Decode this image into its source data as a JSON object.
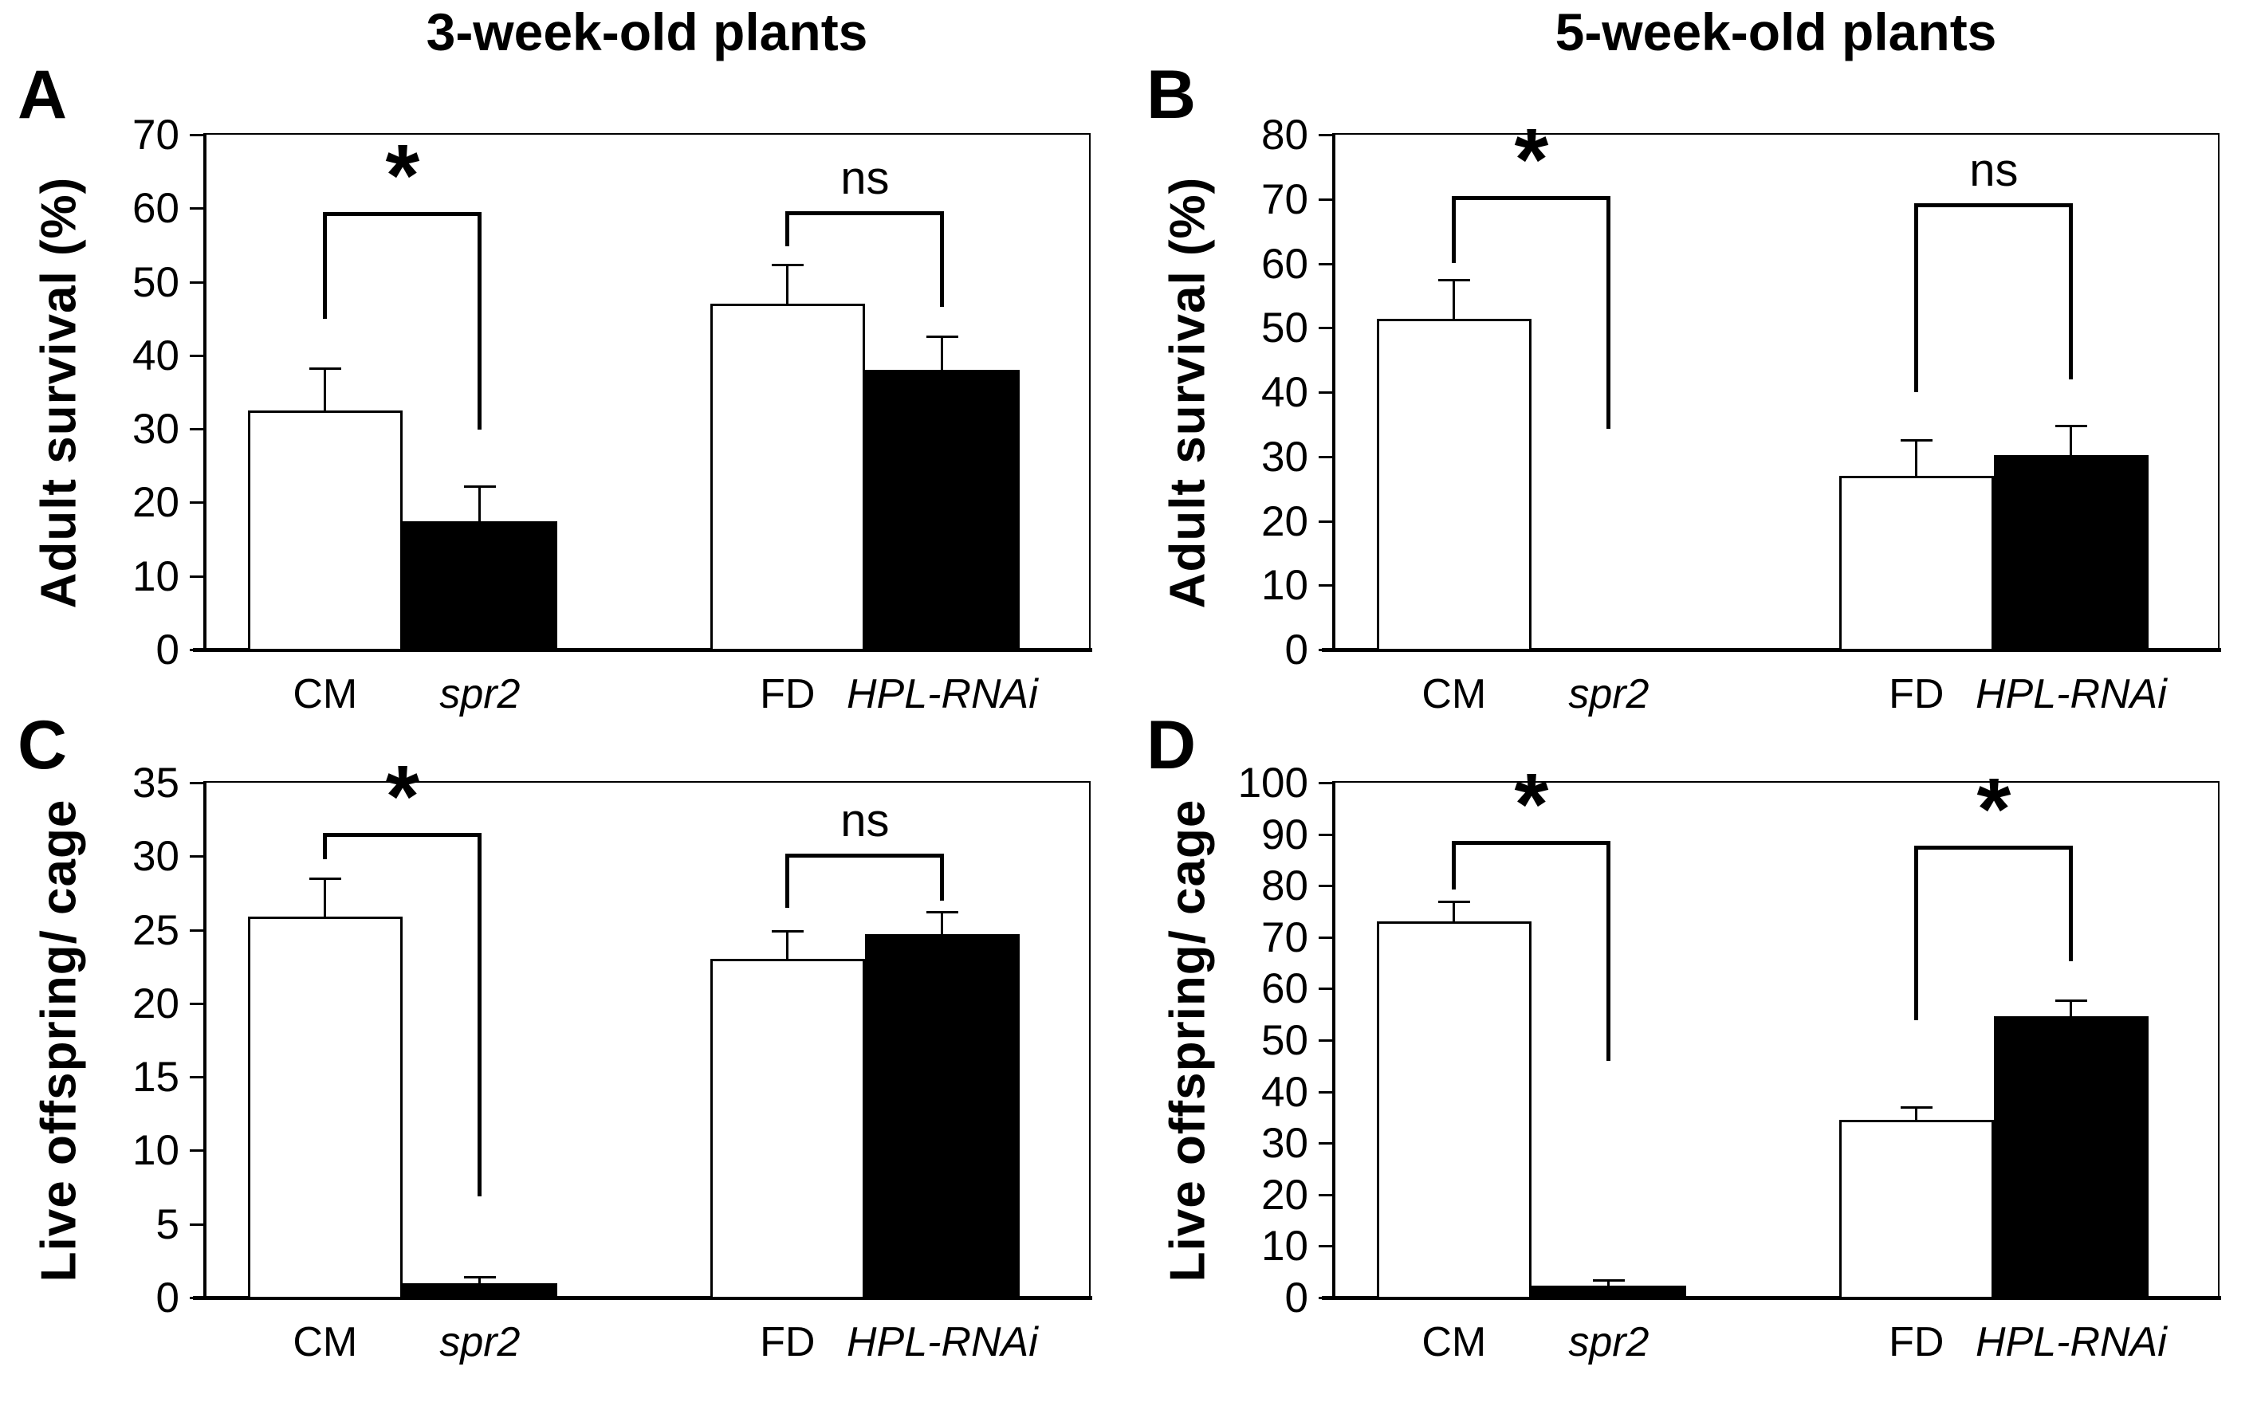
{
  "figure": {
    "column_titles": [
      "3-week-old plants",
      "5-week-old plants"
    ],
    "colors": {
      "background": "#ffffff",
      "line": "#000000",
      "bar_open_fill": "#ffffff",
      "bar_solid_fill": "#000000"
    }
  },
  "chart_data": [
    {
      "type": "bar",
      "panel_label": "A",
      "column_title": "3-week-old plants",
      "ylabel": "Adult survival (%)",
      "ylim": [
        0,
        70
      ],
      "ystep": 10,
      "grid": false,
      "legend": "none",
      "categories": [
        "CM",
        "spr2",
        "FD",
        "HPL-RNAi"
      ],
      "categories_italic": [
        false,
        true,
        false,
        true
      ],
      "bar_styles": [
        "white",
        "black",
        "white",
        "black"
      ],
      "values": [
        32.5,
        17.4,
        47.0,
        38.0
      ],
      "error_top": [
        38.3,
        22.2,
        52.3,
        42.6
      ],
      "significance": [
        {
          "label": "*",
          "from": 0,
          "to": 1,
          "top": 59.5,
          "arm_from": 45.0,
          "arm_to": 29.9
        },
        {
          "label": "ns",
          "from": 2,
          "to": 3,
          "top": 59.6,
          "arm_from": 54.8,
          "arm_to": 46.6
        }
      ]
    },
    {
      "type": "bar",
      "panel_label": "B",
      "column_title": "5-week-old plants",
      "ylabel": "Adult survival (%)",
      "ylim": [
        0,
        80
      ],
      "ystep": 10,
      "grid": false,
      "legend": "none",
      "categories": [
        "CM",
        "spr2",
        "FD",
        "HPL-RNAi"
      ],
      "categories_italic": [
        false,
        true,
        false,
        true
      ],
      "bar_styles": [
        "white",
        "black",
        "white",
        "black"
      ],
      "values": [
        51.4,
        0,
        27.0,
        30.2
      ],
      "error_top": [
        57.4,
        null,
        32.6,
        34.8
      ],
      "significance": [
        {
          "label": "*",
          "from": 0,
          "to": 1,
          "top": 70.5,
          "arm_from": 60.0,
          "arm_to": 34.3
        },
        {
          "label": "ns",
          "from": 2,
          "to": 3,
          "top": 69.4,
          "arm_from": 40.0,
          "arm_to": 42.0
        }
      ]
    },
    {
      "type": "bar",
      "panel_label": "C",
      "column_title": null,
      "ylabel": "Live offspring/ cage",
      "ylim": [
        0,
        35
      ],
      "ystep": 5,
      "grid": false,
      "legend": "none",
      "categories": [
        "CM",
        "spr2",
        "FD",
        "HPL-RNAi"
      ],
      "categories_italic": [
        false,
        true,
        false,
        true
      ],
      "bar_styles": [
        "white",
        "black",
        "white",
        "black"
      ],
      "values": [
        25.9,
        0.95,
        23.0,
        24.7
      ],
      "error_top": [
        28.5,
        1.4,
        24.9,
        26.2
      ],
      "significance": [
        {
          "label": "*",
          "from": 0,
          "to": 1,
          "top": 31.6,
          "arm_from": 29.8,
          "arm_to": 6.9
        },
        {
          "label": "ns",
          "from": 2,
          "to": 3,
          "top": 30.2,
          "arm_from": 26.5,
          "arm_to": 27.0
        }
      ]
    },
    {
      "type": "bar",
      "panel_label": "D",
      "column_title": null,
      "ylabel": "Live offspring/ cage",
      "ylim": [
        0,
        100
      ],
      "ystep": 10,
      "grid": false,
      "legend": "none",
      "categories": [
        "CM",
        "spr2",
        "FD",
        "HPL-RNAi"
      ],
      "categories_italic": [
        false,
        true,
        false,
        true
      ],
      "bar_styles": [
        "white",
        "black",
        "white",
        "black"
      ],
      "values": [
        73.1,
        2.3,
        34.5,
        54.6
      ],
      "error_top": [
        77.0,
        3.4,
        37.0,
        57.7
      ],
      "significance": [
        {
          "label": "*",
          "from": 0,
          "to": 1,
          "top": 88.7,
          "arm_from": 79.3,
          "arm_to": 46.0
        },
        {
          "label": "*",
          "from": 2,
          "to": 3,
          "top": 87.7,
          "arm_from": 53.8,
          "arm_to": 65.4
        }
      ]
    }
  ]
}
